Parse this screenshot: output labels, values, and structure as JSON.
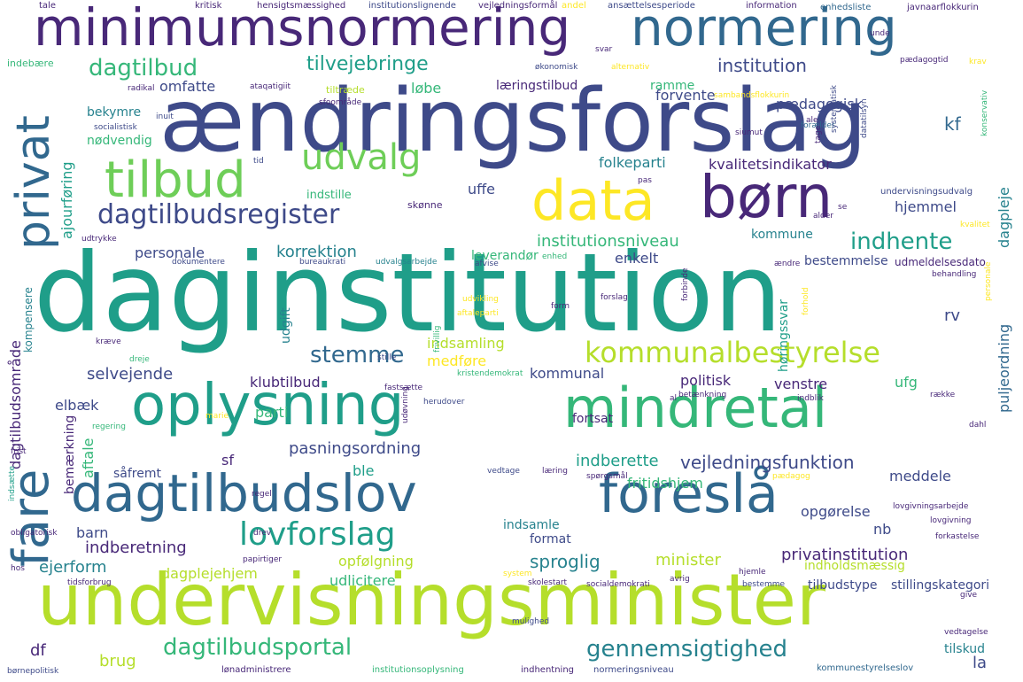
{
  "palette": {
    "c0": "#440154",
    "c1": "#482878",
    "c2": "#3e4a89",
    "c3": "#31688e",
    "c4": "#26828e",
    "c5": "#1f9e89",
    "c6": "#35b779",
    "c7": "#6ece58",
    "c8": "#b5de2b",
    "c9": "#fde725"
  },
  "words": [
    {
      "text": "daginstitution",
      "color": "c5"
    },
    {
      "text": "ændringsforslag",
      "color": "c2"
    },
    {
      "text": "undervisningsminister",
      "color": "c8"
    },
    {
      "text": "minimumsnormering",
      "color": "c1"
    },
    {
      "text": "normering",
      "color": "c3"
    },
    {
      "text": "oplysning",
      "color": "c5"
    },
    {
      "text": "mindretal",
      "color": "c6"
    },
    {
      "text": "dagtilbudslov",
      "color": "c3"
    },
    {
      "text": "foreslå",
      "color": "c3"
    },
    {
      "text": "data",
      "color": "c9"
    },
    {
      "text": "børn",
      "color": "c1"
    },
    {
      "text": "tilbud",
      "color": "c7"
    },
    {
      "text": "privat",
      "color": "c3"
    },
    {
      "text": "fare",
      "color": "c3"
    },
    {
      "text": "udvalg",
      "color": "c7"
    },
    {
      "text": "dagtilbudsregister",
      "color": "c2"
    },
    {
      "text": "lovforslag",
      "color": "c5"
    },
    {
      "text": "kommunalbestyrelse",
      "color": "c8"
    },
    {
      "text": "dagtilbudsportal",
      "color": "c6"
    },
    {
      "text": "gennemsigtighed",
      "color": "c4"
    },
    {
      "text": "dagtilbud",
      "color": "c6"
    },
    {
      "text": "tilvejebringe",
      "color": "c5"
    },
    {
      "text": "institution",
      "color": "c2"
    },
    {
      "text": "indhente",
      "color": "c5"
    },
    {
      "text": "stemme",
      "color": "c3"
    },
    {
      "text": "vejledningsfunktion",
      "color": "c2"
    },
    {
      "text": "sproglig",
      "color": "c4"
    },
    {
      "text": "minister",
      "color": "c8"
    },
    {
      "text": "privatinstitution",
      "color": "c1"
    },
    {
      "text": "pædagogisk",
      "color": "c2"
    },
    {
      "text": "kvalitetsindikator",
      "color": "c1"
    },
    {
      "text": "institutionsniveau",
      "color": "c6"
    },
    {
      "text": "korrektion",
      "color": "c4"
    },
    {
      "text": "personale",
      "color": "c2"
    },
    {
      "text": "indberette",
      "color": "c5"
    },
    {
      "text": "fritidshjem",
      "color": "c6"
    },
    {
      "text": "pasningsordning",
      "color": "c2"
    },
    {
      "text": "selvejende",
      "color": "c2"
    },
    {
      "text": "klubtilbud",
      "color": "c1"
    },
    {
      "text": "indberetning",
      "color": "c1"
    },
    {
      "text": "ejerform",
      "color": "c4"
    },
    {
      "text": "opfølgning",
      "color": "c8"
    },
    {
      "text": "udlicitere",
      "color": "c6"
    },
    {
      "text": "dagplejehjem",
      "color": "c8"
    },
    {
      "text": "indsamling",
      "color": "c8"
    },
    {
      "text": "medføre",
      "color": "c9"
    },
    {
      "text": "kommunal",
      "color": "c2"
    },
    {
      "text": "politisk",
      "color": "c1"
    },
    {
      "text": "venstre",
      "color": "c1"
    },
    {
      "text": "ufg",
      "color": "c6"
    },
    {
      "text": "hjemmel",
      "color": "c2"
    },
    {
      "text": "kommune",
      "color": "c4"
    },
    {
      "text": "enkelt",
      "color": "c2"
    },
    {
      "text": "leverandør",
      "color": "c6"
    },
    {
      "text": "bestemmelse",
      "color": "c2"
    },
    {
      "text": "forvente",
      "color": "c2"
    },
    {
      "text": "folkeparti",
      "color": "c4"
    },
    {
      "text": "uffe",
      "color": "c2"
    },
    {
      "text": "omfatte",
      "color": "c2"
    },
    {
      "text": "læringstilbud",
      "color": "c1"
    },
    {
      "text": "løbe",
      "color": "c6"
    },
    {
      "text": "ramme",
      "color": "c6"
    },
    {
      "text": "bekymre",
      "color": "c4"
    },
    {
      "text": "ajourføring",
      "color": "c5"
    },
    {
      "text": "nødvendig",
      "color": "c6"
    },
    {
      "text": "kf",
      "color": "c3"
    },
    {
      "text": "dagpleje",
      "color": "c4"
    },
    {
      "text": "puljeordning",
      "color": "c3"
    },
    {
      "text": "rv",
      "color": "c2"
    },
    {
      "text": "meddele",
      "color": "c2"
    },
    {
      "text": "opgørelse",
      "color": "c2"
    },
    {
      "text": "nb",
      "color": "c2"
    },
    {
      "text": "format",
      "color": "c2"
    },
    {
      "text": "indsamle",
      "color": "c4"
    },
    {
      "text": "barn",
      "color": "c2"
    },
    {
      "text": "ble",
      "color": "c5"
    },
    {
      "text": "sf",
      "color": "c1"
    },
    {
      "text": "såfremt",
      "color": "c2"
    },
    {
      "text": "df",
      "color": "c1"
    },
    {
      "text": "brug",
      "color": "c8"
    },
    {
      "text": "la",
      "color": "c2"
    },
    {
      "text": "tilskud",
      "color": "c4"
    },
    {
      "text": "indholdsmæssig",
      "color": "c8"
    },
    {
      "text": "tilbudstype",
      "color": "c2"
    },
    {
      "text": "stillingskategori",
      "color": "c2"
    },
    {
      "text": "parti",
      "color": "c6"
    },
    {
      "text": "elbæk",
      "color": "c2"
    },
    {
      "text": "fortsat",
      "color": "c1"
    },
    {
      "text": "aftale",
      "color": "c6"
    },
    {
      "text": "bemærkning",
      "color": "c1"
    },
    {
      "text": "dagtilbudsområde",
      "color": "c1"
    },
    {
      "text": "kompensere",
      "color": "c4"
    },
    {
      "text": "udgift",
      "color": "c4"
    },
    {
      "text": "høringssvar",
      "color": "c5"
    },
    {
      "text": "udmeldelsesdato",
      "color": "c1"
    },
    {
      "text": "indstille",
      "color": "c6"
    },
    {
      "text": "skønne",
      "color": "c1"
    },
    {
      "text": "undervisningsudvalg",
      "color": "c2"
    },
    {
      "text": "kritisk",
      "color": "c1"
    },
    {
      "text": "hensigtsmæssighed",
      "color": "c1"
    },
    {
      "text": "institutionslignende",
      "color": "c2"
    },
    {
      "text": "vejledningsformål",
      "color": "c1"
    },
    {
      "text": "andel",
      "color": "c9"
    },
    {
      "text": "ansættelsesperiode",
      "color": "c2"
    },
    {
      "text": "information",
      "color": "c1"
    },
    {
      "text": "enhedsliste",
      "color": "c3"
    },
    {
      "text": "javnaarflokkurin",
      "color": "c1"
    },
    {
      "text": "tale",
      "color": "c1"
    },
    {
      "text": "indebære",
      "color": "c6"
    },
    {
      "text": "radikal",
      "color": "c1"
    },
    {
      "text": "ataqatigiit",
      "color": "c1"
    },
    {
      "text": "tiltræde",
      "color": "c8"
    },
    {
      "text": "økonomisk",
      "color": "c2"
    },
    {
      "text": "alternativ",
      "color": "c9"
    },
    {
      "text": "pædagogtid",
      "color": "c1"
    },
    {
      "text": "krav",
      "color": "c9"
    },
    {
      "text": "sfoområde",
      "color": "c1"
    },
    {
      "text": "inuit",
      "color": "c2"
    },
    {
      "text": "socialistisk",
      "color": "c2"
    },
    {
      "text": "forælder",
      "color": "c3"
    },
    {
      "text": "byrde",
      "color": "c2"
    },
    {
      "text": "sambandsflokkurin",
      "color": "c9"
    },
    {
      "text": "systematisk",
      "color": "c2"
    },
    {
      "text": "datatilsyn",
      "color": "c2"
    },
    {
      "text": "konservativ",
      "color": "c6"
    },
    {
      "text": "siumut",
      "color": "c1"
    },
    {
      "text": "tid",
      "color": "c2"
    },
    {
      "text": "pas",
      "color": "c1"
    },
    {
      "text": "udtrykke",
      "color": "c1"
    },
    {
      "text": "kvalitet",
      "color": "c9"
    },
    {
      "text": "alder",
      "color": "c1"
    },
    {
      "text": "dokumentere",
      "color": "c2"
    },
    {
      "text": "bureaukrati",
      "color": "c2"
    },
    {
      "text": "udvalgsarbejde",
      "color": "c4"
    },
    {
      "text": "afvise",
      "color": "c2"
    },
    {
      "text": "enhed",
      "color": "c6"
    },
    {
      "text": "ændre",
      "color": "c1"
    },
    {
      "text": "behandling",
      "color": "c1"
    },
    {
      "text": "udvikling",
      "color": "c9"
    },
    {
      "text": "aftaleparti",
      "color": "c9"
    },
    {
      "text": "frivillig",
      "color": "c6"
    },
    {
      "text": "forslag",
      "color": "c1"
    },
    {
      "text": "forbinde",
      "color": "c1"
    },
    {
      "text": "form",
      "color": "c1"
    },
    {
      "text": "kræve",
      "color": "c1"
    },
    {
      "text": "dreje",
      "color": "c6"
    },
    {
      "text": "stille",
      "color": "c2"
    },
    {
      "text": "kristendemokrat",
      "color": "c6"
    },
    {
      "text": "udøvning",
      "color": "c1"
    },
    {
      "text": "fastsætte",
      "color": "c1"
    },
    {
      "text": "herudover",
      "color": "c2"
    },
    {
      "text": "betænkning",
      "color": "c1"
    },
    {
      "text": "indblik",
      "color": "c1"
    },
    {
      "text": "række",
      "color": "c1"
    },
    {
      "text": "regering",
      "color": "c6"
    },
    {
      "text": "marie",
      "color": "c9"
    },
    {
      "text": "frist",
      "color": "c1"
    },
    {
      "text": "dahl",
      "color": "c1"
    },
    {
      "text": "vedtage",
      "color": "c2"
    },
    {
      "text": "læring",
      "color": "c1"
    },
    {
      "text": "spørgsmål",
      "color": "c1"
    },
    {
      "text": "pædagog",
      "color": "c9"
    },
    {
      "text": "regel",
      "color": "c1"
    },
    {
      "text": "indsætte",
      "color": "c5"
    },
    {
      "text": "obligatorisk",
      "color": "c1"
    },
    {
      "text": "drev",
      "color": "c1"
    },
    {
      "text": "lovgivningsarbejde",
      "color": "c1"
    },
    {
      "text": "lovgivning",
      "color": "c1"
    },
    {
      "text": "forkastelse",
      "color": "c1"
    },
    {
      "text": "hos",
      "color": "c1"
    },
    {
      "text": "papirtiger",
      "color": "c1"
    },
    {
      "text": "system",
      "color": "c9"
    },
    {
      "text": "avrig",
      "color": "c1"
    },
    {
      "text": "hjemle",
      "color": "c1"
    },
    {
      "text": "tidsforbrug",
      "color": "c1"
    },
    {
      "text": "skolestart",
      "color": "c1"
    },
    {
      "text": "socialdemokrati",
      "color": "c1"
    },
    {
      "text": "bestemme",
      "color": "c2"
    },
    {
      "text": "give",
      "color": "c1"
    },
    {
      "text": "mulighed",
      "color": "c2"
    },
    {
      "text": "vedtagelse",
      "color": "c1"
    },
    {
      "text": "lønadministrere",
      "color": "c1"
    },
    {
      "text": "institutionsoplysning",
      "color": "c6"
    },
    {
      "text": "indhentning",
      "color": "c1"
    },
    {
      "text": "normeringsniveau",
      "color": "c2"
    },
    {
      "text": "kommunestyrelseslov",
      "color": "c3"
    },
    {
      "text": "børnepolitisk",
      "color": "c2"
    },
    {
      "text": "unde",
      "color": "c1"
    },
    {
      "text": "svar",
      "color": "c1"
    },
    {
      "text": "ale",
      "color": "c1"
    },
    {
      "text": "tage",
      "color": "c1"
    },
    {
      "text": "se",
      "color": "c1"
    },
    {
      "text": "al",
      "color": "c1"
    },
    {
      "text": "personale",
      "color": "c9"
    },
    {
      "text": "forhold",
      "color": "c9"
    }
  ]
}
